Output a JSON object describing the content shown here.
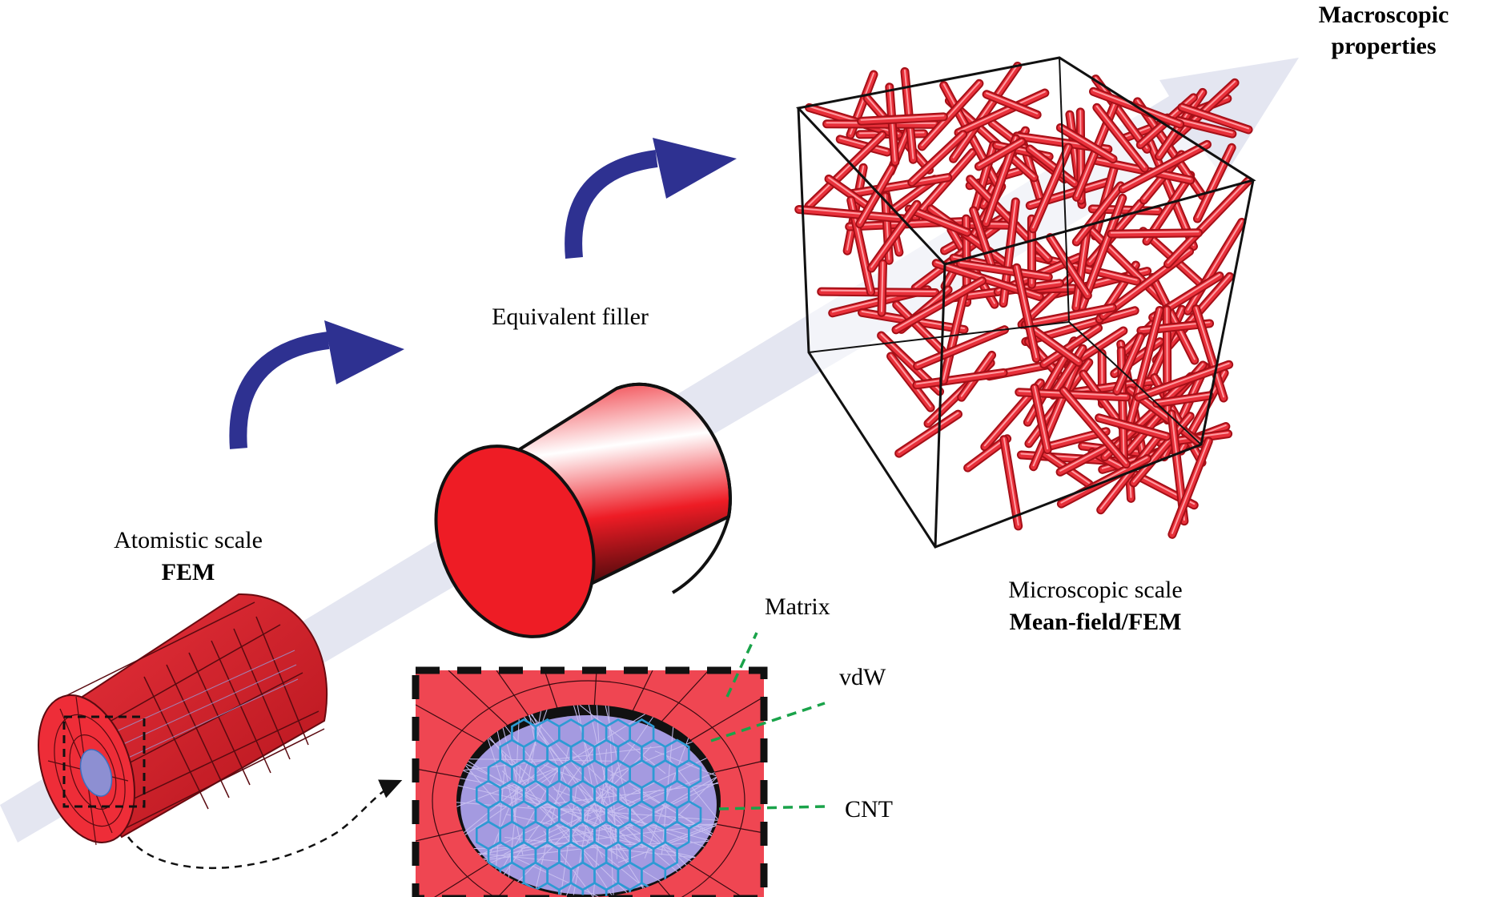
{
  "labels": {
    "macroscopic_line1": "Macroscopic",
    "macroscopic_line2": "properties",
    "equivalent_filler": "Equivalent filler",
    "atomistic_scale": "Atomistic scale",
    "fem": "FEM",
    "microscopic_scale": "Microscopic scale",
    "mean_field_fem": "Mean-field/FEM",
    "matrix": "Matrix",
    "vdw": "vdW",
    "cnt": "CNT"
  },
  "colors": {
    "scale_arrow": "#e4e6f1",
    "curved_arrow": "#2e3191",
    "filler_red": "#ee1c25",
    "matrix_red": "#ef4652",
    "vdw_lilac": "#a49ae0",
    "cnt_blue": "#2d9ad4",
    "callout_green": "#1aa34a"
  },
  "icons": [
    "scale-arrow",
    "curved-arrow",
    "curved-arrow",
    "fem-cylinder-mesh",
    "equivalent-filler-cylinder",
    "rve-cube",
    "zoom-inset"
  ]
}
